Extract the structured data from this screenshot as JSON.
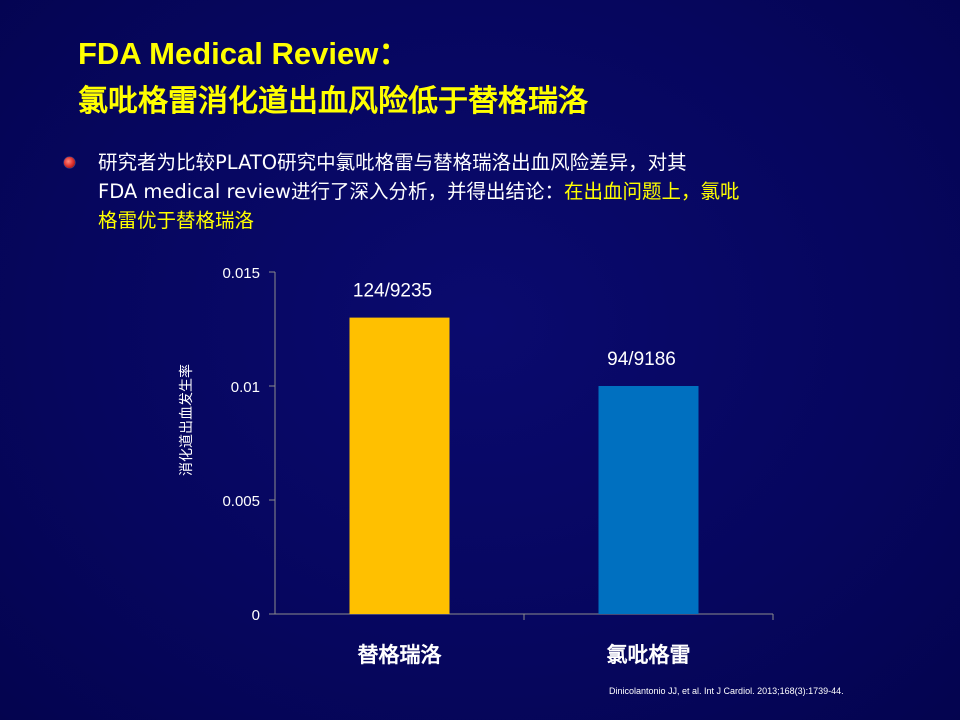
{
  "title": {
    "line1": "FDA Medical Review：",
    "line2": "氯吡格雷消化道出血风险低于替格瑞洛"
  },
  "bullet": {
    "text_line1": "研究者为比较PLATO研究中氯吡格雷与替格瑞洛出血风险差异，对其",
    "text_line2_prefix": "FDA medical review进行了深入分析，并得出结论：",
    "text_line2_highlight": "在出血问题上，氯吡",
    "text_line3_highlight": "格雷优于替格瑞洛",
    "highlight_color": "#ffff00",
    "text_color": "#ffffff"
  },
  "chart_data": {
    "type": "bar",
    "categories": [
      "替格瑞洛",
      "氯吡格雷"
    ],
    "values": [
      0.013,
      0.01
    ],
    "data_labels": [
      "124/9235",
      "94/9186"
    ],
    "colors": [
      "#ffc000",
      "#0070c0"
    ],
    "ylabel": "消化道出血发生率",
    "xlabel": "",
    "ylim": [
      0,
      0.015
    ],
    "yticks": [
      0,
      0.005,
      0.01,
      0.015
    ],
    "ytick_labels": [
      "0",
      "0.005",
      "0.01",
      "0.015"
    ],
    "grid": false
  },
  "citation": "Dinicolantonio JJ, et al. Int J Cardiol. 2013;168(3):1739-44."
}
